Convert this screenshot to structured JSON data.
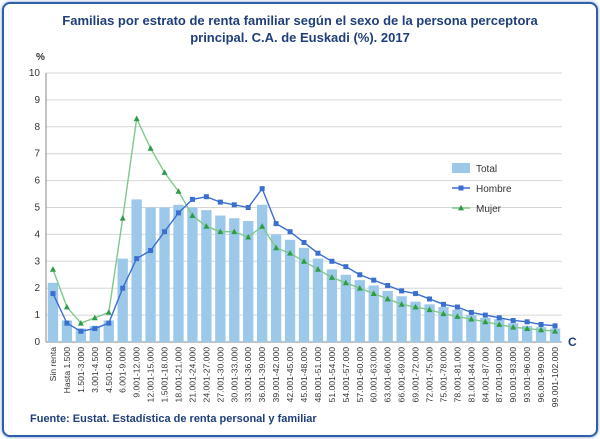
{
  "title_line1": "Familias por estrato de renta familiar según el sexo de la persona perceptora",
  "title_line2": "principal. C.A. de Euskadi (%). 2017",
  "source": "Fuente: Eustat. Estadística de renta personal y familiar",
  "corner_mark": "C",
  "colors": {
    "total": "#9cc8ea",
    "hombre": "#3b6fcf",
    "mujer": "#7fc98c",
    "mujer_marker": "#2f9a4a"
  },
  "chart_data": {
    "type": "bar",
    "ylabel": "%",
    "ylim": [
      0,
      10
    ],
    "yticks": [
      "0",
      "1",
      "2",
      "3",
      "4",
      "5",
      "6",
      "7",
      "8",
      "9",
      "10"
    ],
    "grid": true,
    "legend_position": "right",
    "categories": [
      "Sin renta",
      "Hasta 1.500",
      "1.501-3.000",
      "3.001-4.500",
      "4.501-6.000",
      "6.001-9.000",
      "9.001-12.000",
      "12.001-15.000",
      "1.5001-18.000",
      "18.001-21.000",
      "21.001-24.000",
      "24.001-27.000",
      "27.001-30.000",
      "30.001-33.000",
      "33.001-36.000",
      "36.001-39.000",
      "39.001-42.000",
      "42.001-45.000",
      "45.001-48.000",
      "48.001-51.000",
      "51.001-54.000",
      "54.001-57.000",
      "57.001-60.000",
      "60.001-63.000",
      "63.001-66.000",
      "66.001-69.000",
      "69.001-72.000",
      "72.001-75.000",
      "75.001-78.000",
      "78.001-81.000",
      "81.001-84.000",
      "84.001-87.000",
      "87.001-90.000",
      "90.001-93.000",
      "93.001-96.000",
      "96.001-99.000",
      "99.001-102.000"
    ],
    "series": [
      {
        "name": "Total",
        "kind": "bar",
        "values": [
          2.2,
          0.8,
          0.5,
          0.6,
          0.8,
          3.1,
          5.3,
          5.0,
          5.0,
          5.1,
          5.0,
          4.9,
          4.7,
          4.6,
          4.5,
          5.1,
          4.0,
          3.8,
          3.5,
          3.1,
          2.7,
          2.5,
          2.3,
          2.1,
          1.9,
          1.7,
          1.5,
          1.4,
          1.3,
          1.2,
          1.0,
          0.9,
          0.85,
          0.7,
          0.6,
          0.55,
          0.5
        ]
      },
      {
        "name": "Hombre",
        "kind": "line",
        "values": [
          1.8,
          0.7,
          0.4,
          0.5,
          0.7,
          2.0,
          3.1,
          3.4,
          4.1,
          4.8,
          5.3,
          5.4,
          5.2,
          5.1,
          5.0,
          5.7,
          4.4,
          4.1,
          3.7,
          3.3,
          3.0,
          2.8,
          2.5,
          2.3,
          2.1,
          1.9,
          1.8,
          1.6,
          1.4,
          1.3,
          1.1,
          1.0,
          0.9,
          0.8,
          0.75,
          0.65,
          0.6
        ]
      },
      {
        "name": "Mujer",
        "kind": "line",
        "values": [
          2.7,
          1.3,
          0.7,
          0.9,
          1.1,
          4.6,
          8.3,
          7.2,
          6.3,
          5.6,
          4.7,
          4.3,
          4.1,
          4.1,
          3.9,
          4.3,
          3.5,
          3.3,
          3.0,
          2.7,
          2.4,
          2.2,
          2.0,
          1.8,
          1.6,
          1.4,
          1.3,
          1.2,
          1.05,
          0.95,
          0.85,
          0.75,
          0.65,
          0.55,
          0.5,
          0.45,
          0.4
        ]
      }
    ]
  }
}
